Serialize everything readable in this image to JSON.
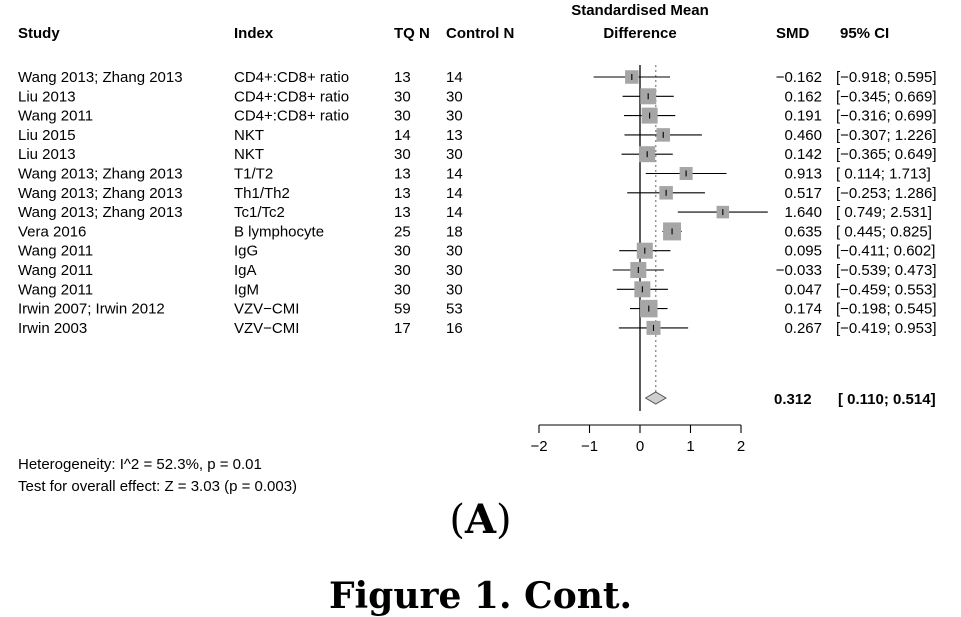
{
  "chart_data": {
    "type": "forest",
    "headers": {
      "study": "Study",
      "index": "Index",
      "tq_n": "TQ N",
      "control_n": "Control N",
      "effect_line1": "Standardised Mean",
      "effect_line2": "Difference",
      "smd": "SMD",
      "ci": "95% CI"
    },
    "rows": [
      {
        "study": "Wang 2013; Zhang 2013",
        "index": "CD4+:CD8+ ratio",
        "tq_n": "13",
        "control_n": "14",
        "smd": -0.162,
        "lo": -0.918,
        "hi": 0.595,
        "weight": 0.55,
        "smd_text": "−0.162",
        "ci_text": "[−0.918; 0.595]"
      },
      {
        "study": "Liu 2013",
        "index": "CD4+:CD8+ ratio",
        "tq_n": "30",
        "control_n": "30",
        "smd": 0.162,
        "lo": -0.345,
        "hi": 0.669,
        "weight": 0.8,
        "smd_text": "0.162",
        "ci_text": "[−0.345; 0.669]"
      },
      {
        "study": "Wang 2011",
        "index": "CD4+:CD8+ ratio",
        "tq_n": "30",
        "control_n": "30",
        "smd": 0.191,
        "lo": -0.316,
        "hi": 0.699,
        "weight": 0.8,
        "smd_text": "0.191",
        "ci_text": "[−0.316; 0.699]"
      },
      {
        "study": "Liu 2015",
        "index": "NKT",
        "tq_n": "14",
        "control_n": "13",
        "smd": 0.46,
        "lo": -0.307,
        "hi": 1.226,
        "weight": 0.55,
        "smd_text": "0.460",
        "ci_text": "[−0.307; 1.226]"
      },
      {
        "study": "Liu 2013",
        "index": "NKT",
        "tq_n": "30",
        "control_n": "30",
        "smd": 0.142,
        "lo": -0.365,
        "hi": 0.649,
        "weight": 0.8,
        "smd_text": "0.142",
        "ci_text": "[−0.365; 0.649]"
      },
      {
        "study": "Wang 2013; Zhang 2013",
        "index": "T1/T2",
        "tq_n": "13",
        "control_n": "14",
        "smd": 0.913,
        "lo": 0.114,
        "hi": 1.713,
        "weight": 0.5,
        "smd_text": "0.913",
        "ci_text": "[ 0.114; 1.713]"
      },
      {
        "study": "Wang 2013; Zhang 2013",
        "index": "Th1/Th2",
        "tq_n": "13",
        "control_n": "14",
        "smd": 0.517,
        "lo": -0.253,
        "hi": 1.286,
        "weight": 0.55,
        "smd_text": "0.517",
        "ci_text": "[−0.253; 1.286]"
      },
      {
        "study": "Wang 2013; Zhang 2013",
        "index": "Tc1/Tc2",
        "tq_n": "13",
        "control_n": "14",
        "smd": 1.64,
        "lo": 0.749,
        "hi": 2.531,
        "weight": 0.45,
        "smd_text": "1.640",
        "ci_text": "[ 0.749; 2.531]"
      },
      {
        "study": "Vera 2016",
        "index": "B lymphocyte",
        "tq_n": "25",
        "control_n": "18",
        "smd": 0.635,
        "lo": 0.445,
        "hi": 0.825,
        "weight": 1.0,
        "smd_text": "0.635",
        "ci_text": "[ 0.445; 0.825]"
      },
      {
        "study": "Wang 2011",
        "index": "IgG",
        "tq_n": "30",
        "control_n": "30",
        "smd": 0.095,
        "lo": -0.411,
        "hi": 0.602,
        "weight": 0.8,
        "smd_text": "0.095",
        "ci_text": "[−0.411; 0.602]"
      },
      {
        "study": "Wang 2011",
        "index": "IgA",
        "tq_n": "30",
        "control_n": "30",
        "smd": -0.033,
        "lo": -0.539,
        "hi": 0.473,
        "weight": 0.8,
        "smd_text": "−0.033",
        "ci_text": "[−0.539; 0.473]"
      },
      {
        "study": "Wang 2011",
        "index": "IgM",
        "tq_n": "30",
        "control_n": "30",
        "smd": 0.047,
        "lo": -0.459,
        "hi": 0.553,
        "weight": 0.8,
        "smd_text": "0.047",
        "ci_text": "[−0.459; 0.553]"
      },
      {
        "study": "Irwin 2007; Irwin 2012",
        "index": "VZV−CMI",
        "tq_n": "59",
        "control_n": "53",
        "smd": 0.174,
        "lo": -0.198,
        "hi": 0.545,
        "weight": 0.95,
        "smd_text": "0.174",
        "ci_text": "[−0.198; 0.545]"
      },
      {
        "study": "Irwin 2003",
        "index": "VZV−CMI",
        "tq_n": "17",
        "control_n": "16",
        "smd": 0.267,
        "lo": -0.419,
        "hi": 0.953,
        "weight": 0.6,
        "smd_text": "0.267",
        "ci_text": "[−0.419; 0.953]"
      }
    ],
    "pooled": {
      "smd": 0.312,
      "lo": 0.11,
      "hi": 0.514,
      "smd_text": "0.312",
      "ci_text": "[ 0.110; 0.514]"
    },
    "x_axis": {
      "min": -2,
      "max": 2,
      "ticks": [
        -2,
        -1,
        0,
        1,
        2
      ],
      "tick_labels": [
        "−2",
        "−1",
        "0",
        "1",
        "2"
      ]
    },
    "null_line": 0,
    "footer": {
      "heterogeneity": "Heterogeneity: I^2 = 52.3%, p = 0.01",
      "overall": "Test for overall effect: Z = 3.03 (p = 0.003)"
    },
    "colors": {
      "box": "#a6a6a6",
      "line": "#000000",
      "diamond_fill": "#cfcfcf",
      "pooled_line": "#888888"
    }
  },
  "panel_label": "A",
  "caption": "Figure 1. Cont."
}
